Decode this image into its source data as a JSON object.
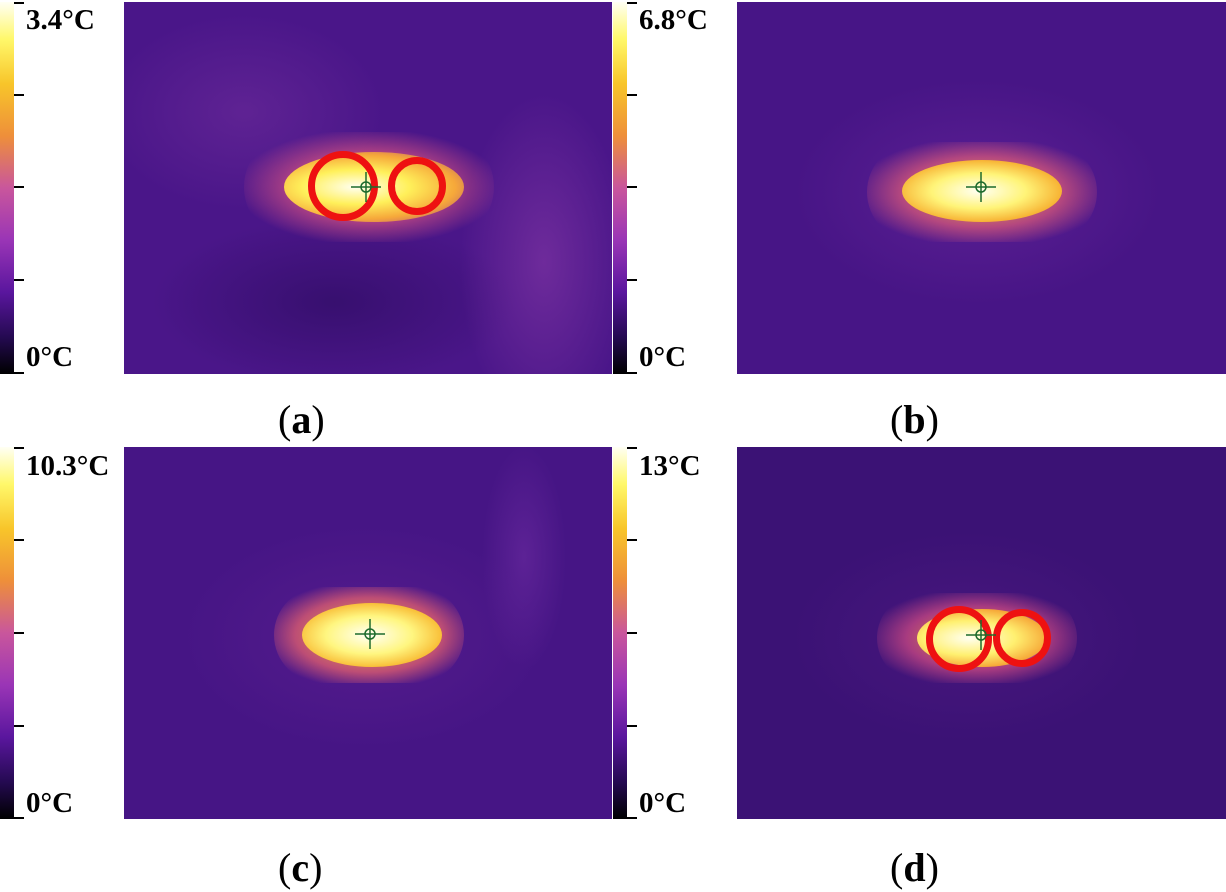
{
  "panels": [
    {
      "label": "a",
      "max_label": "3.4°C",
      "min_label": "0°C",
      "marker_circles": 2
    },
    {
      "label": "b",
      "max_label": "6.8°C",
      "min_label": "0°C",
      "marker_circles": 0
    },
    {
      "label": "c",
      "max_label": "10.3°C",
      "min_label": "0°C",
      "marker_circles": 0
    },
    {
      "label": "d",
      "max_label": "13°C",
      "min_label": "0°C",
      "marker_circles": 2
    }
  ],
  "colors": {
    "background": "#4b158a",
    "hotspot": "#fffff0",
    "marker_ring": "#ee1111",
    "crosshair": "#1d6b2c"
  },
  "colormap": "inferno-like (black → purple → orange → yellow → white)"
}
